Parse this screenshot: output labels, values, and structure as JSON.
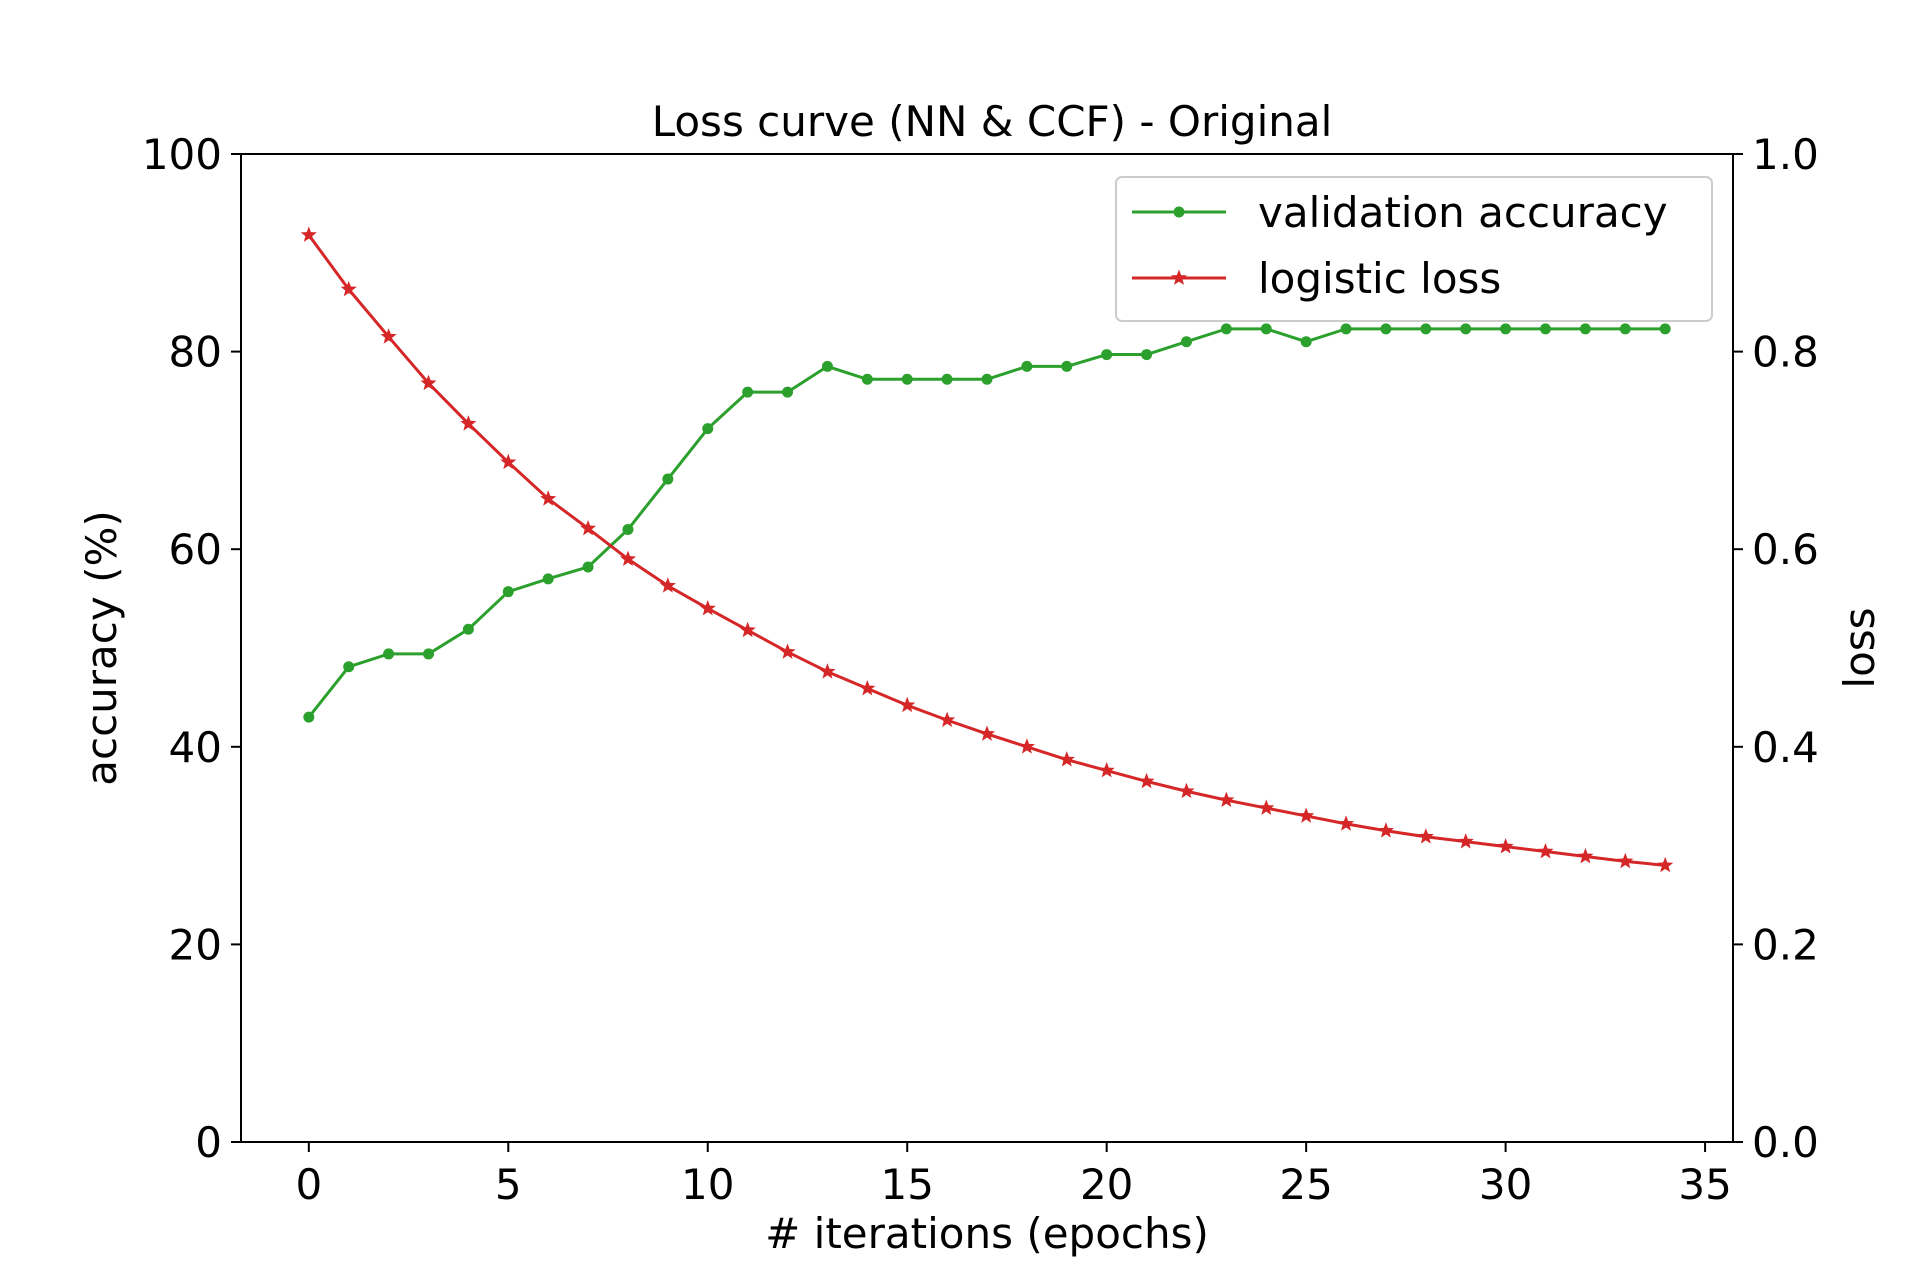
{
  "chart_data": {
    "type": "line",
    "title": "Loss curve (NN & CCF) - Original",
    "xlabel": "# iterations (epochs)",
    "ylabel_left": "accuracy (%)",
    "ylabel_right": "loss",
    "xlim": [
      -1.7,
      35.7
    ],
    "ylim_left": [
      0,
      100
    ],
    "ylim_right": [
      0.0,
      1.0
    ],
    "x_ticks": [
      0,
      5,
      10,
      15,
      20,
      25,
      30,
      35
    ],
    "y_left_ticks": [
      0,
      20,
      40,
      60,
      80,
      100
    ],
    "y_right_ticks": [
      "0.0",
      "0.2",
      "0.4",
      "0.6",
      "0.8",
      "1.0"
    ],
    "grid": false,
    "legend_position": "top-right",
    "series": [
      {
        "name": "validation accuracy",
        "axis": "left",
        "color": "#2ca02c",
        "marker": "circle",
        "x": [
          0,
          1,
          2,
          3,
          4,
          5,
          6,
          7,
          8,
          9,
          10,
          11,
          12,
          13,
          14,
          15,
          16,
          17,
          18,
          19,
          20,
          21,
          22,
          23,
          24,
          25,
          26,
          27,
          28,
          29,
          30,
          31,
          32,
          33,
          34
        ],
        "values": [
          43.0,
          48.1,
          49.4,
          49.4,
          51.9,
          55.7,
          57.0,
          58.2,
          62.0,
          67.1,
          72.2,
          75.9,
          75.9,
          78.5,
          77.2,
          77.2,
          77.2,
          77.2,
          78.5,
          78.5,
          79.7,
          79.7,
          81.0,
          82.3,
          82.3,
          81.0,
          82.3,
          82.3,
          82.3,
          82.3,
          82.3,
          82.3,
          82.3,
          82.3,
          82.3
        ]
      },
      {
        "name": "logistic loss",
        "axis": "right",
        "color": "#d62728",
        "marker": "star",
        "x": [
          0,
          1,
          2,
          3,
          4,
          5,
          6,
          7,
          8,
          9,
          10,
          11,
          12,
          13,
          14,
          15,
          16,
          17,
          18,
          19,
          20,
          21,
          22,
          23,
          24,
          25,
          26,
          27,
          28,
          29,
          30,
          31,
          32,
          33,
          34
        ],
        "values": [
          0.918,
          0.863,
          0.815,
          0.768,
          0.727,
          0.688,
          0.651,
          0.621,
          0.59,
          0.563,
          0.54,
          0.518,
          0.496,
          0.476,
          0.459,
          0.442,
          0.427,
          0.413,
          0.4,
          0.387,
          0.376,
          0.365,
          0.355,
          0.346,
          0.338,
          0.33,
          0.322,
          0.315,
          0.309,
          0.304,
          0.299,
          0.294,
          0.289,
          0.284,
          0.28
        ]
      }
    ]
  }
}
